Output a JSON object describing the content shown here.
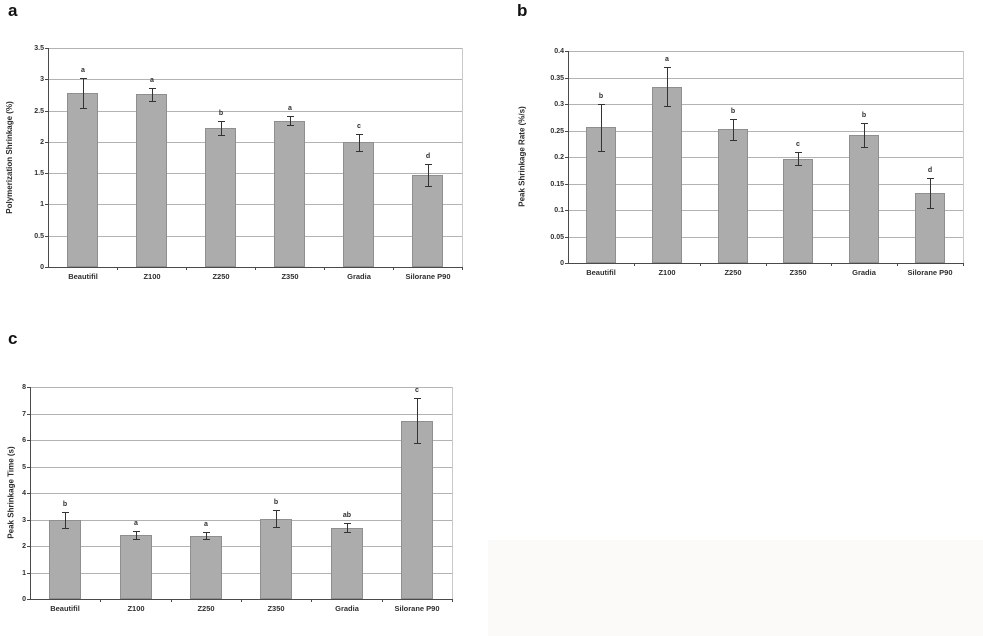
{
  "colors": {
    "bar_fill": "#acacac",
    "bar_edge": "#8f8f8f",
    "gridline": "#b3b3b3",
    "axis": "#4a4a4a",
    "error_bar": "#333333",
    "text": "#2f2f2f",
    "scan_artifact_bg": "#fcf9f9"
  },
  "chart_data": [
    {
      "panel_label": "a",
      "type": "bar",
      "title": "",
      "xlabel": "",
      "ylabel": "Polymerization Shrinkage (%)",
      "categories": [
        "Beautifil",
        "Z100",
        "Z250",
        "Z350",
        "Gradia",
        "Silorane P90"
      ],
      "values": [
        2.78,
        2.76,
        2.22,
        2.34,
        1.99,
        1.47
      ],
      "errors": [
        0.24,
        0.1,
        0.11,
        0.07,
        0.13,
        0.18
      ],
      "sig_letters": [
        "a",
        "a",
        "b",
        "a",
        "c",
        "d"
      ],
      "ylim": [
        0,
        3.5
      ],
      "ytick_labels": [
        "3.5",
        "3",
        "2.5",
        "2",
        "1.5",
        "1",
        "0.5",
        "0"
      ],
      "grid": true,
      "legend": false
    },
    {
      "panel_label": "b",
      "type": "bar",
      "title": "",
      "xlabel": "",
      "ylabel": "Peak Shrinkage Rate (%/s)",
      "categories": [
        "Beautifil",
        "Z100",
        "Z250",
        "Z350",
        "Gradia",
        "Silorane P90"
      ],
      "values": [
        0.256,
        0.333,
        0.252,
        0.197,
        0.241,
        0.132
      ],
      "errors": [
        0.044,
        0.037,
        0.019,
        0.012,
        0.023,
        0.028
      ],
      "sig_letters": [
        "b",
        "a",
        "b",
        "c",
        "b",
        "d"
      ],
      "ylim": [
        0,
        0.4
      ],
      "ytick_labels": [
        "0.4",
        "0.35",
        "0.3",
        "0.25",
        "0.2",
        "0.15",
        "0.1",
        "0.05",
        "0"
      ],
      "grid": true,
      "legend": false
    },
    {
      "panel_label": "c",
      "type": "bar",
      "title": "",
      "xlabel": "",
      "ylabel": "Peak Shrinkage Time (s)",
      "categories": [
        "Beautifil",
        "Z100",
        "Z250",
        "Z350",
        "Gradia",
        "Silorane P90"
      ],
      "values": [
        2.97,
        2.42,
        2.38,
        3.02,
        2.68,
        6.72
      ],
      "errors": [
        0.3,
        0.15,
        0.13,
        0.32,
        0.17,
        0.85
      ],
      "sig_letters": [
        "b",
        "a",
        "a",
        "b",
        "ab",
        "c"
      ],
      "ylim": [
        0,
        8
      ],
      "ytick_labels": [
        "8",
        "7",
        "6",
        "5",
        "4",
        "3",
        "2",
        "1",
        "0"
      ],
      "grid": true,
      "legend": false
    }
  ]
}
